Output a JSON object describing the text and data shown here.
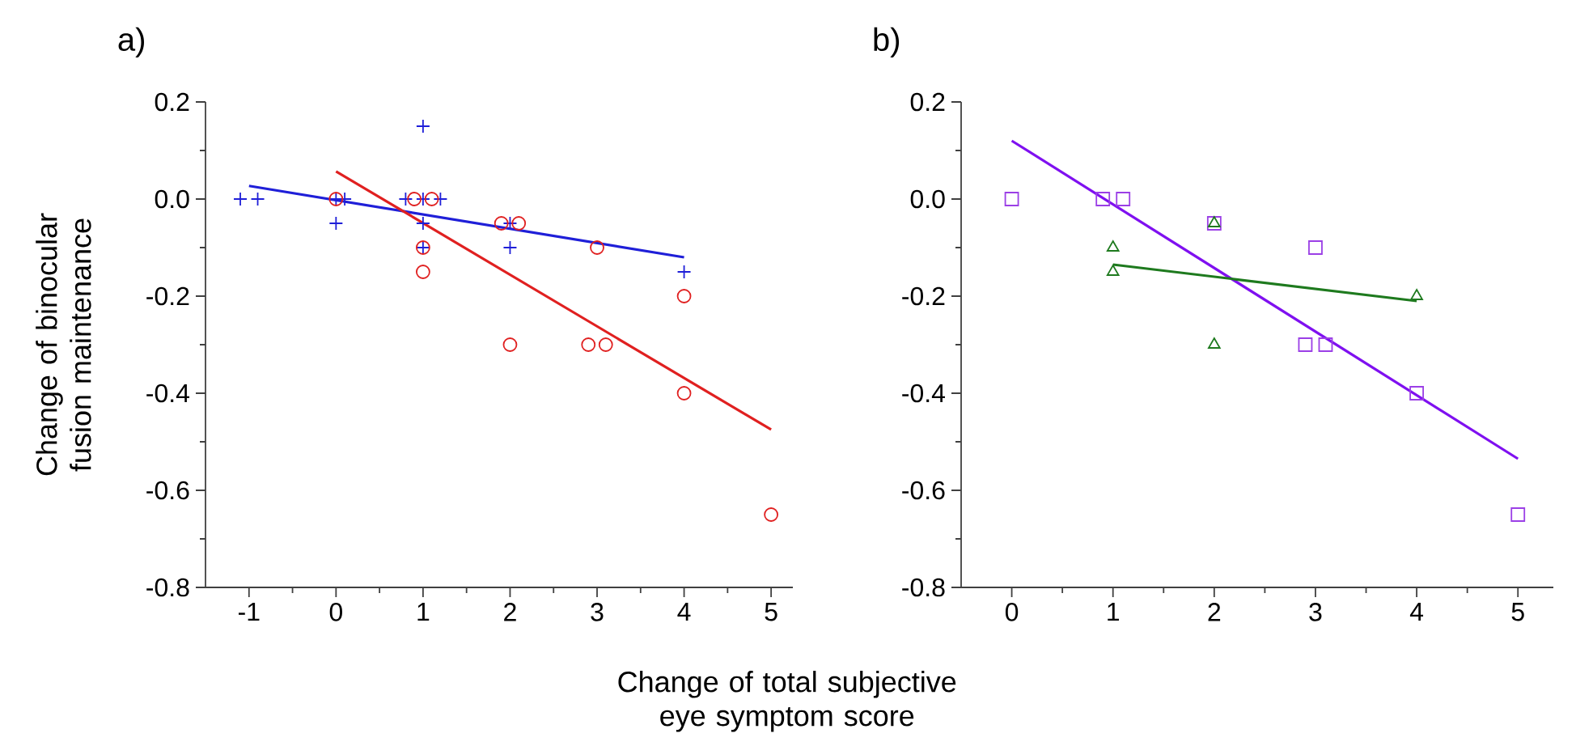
{
  "chart_data": [
    {
      "type": "scatter",
      "title": "a)",
      "xlabel": "Change of total subjective eye symptom score",
      "ylabel": "Change of binocular fusion maintenance",
      "xlim": [
        -1.5,
        5.25
      ],
      "xticks": [
        -1,
        0,
        1,
        2,
        3,
        4,
        5
      ],
      "ylim": [
        -0.8,
        0.2
      ],
      "yticks": [
        {
          "value": -0.8,
          "label": "-0.8"
        },
        {
          "value": -0.6,
          "label": "-0.6"
        },
        {
          "value": -0.4,
          "label": "-0.4"
        },
        {
          "value": -0.2,
          "label": "-0.2"
        },
        {
          "value": 0,
          "label": "0.0"
        },
        {
          "value": 0.2,
          "label": "0.2"
        }
      ],
      "grid": false,
      "series": [
        {
          "type": "scatter",
          "marker": "cross",
          "color": "#1f1fd8",
          "x": [
            -1.1,
            -0.9,
            0,
            0.1,
            0,
            0.8,
            1,
            1.2,
            1,
            1,
            1,
            2,
            2,
            4
          ],
          "values": [
            0,
            0,
            0,
            0,
            -0.05,
            0,
            0,
            0,
            0.15,
            -0.05,
            -0.1,
            -0.05,
            -0.1,
            -0.15
          ]
        },
        {
          "type": "scatter",
          "marker": "circle",
          "color": "#e02020",
          "x": [
            0,
            0.9,
            1.1,
            1,
            1,
            1.9,
            2.1,
            2,
            3,
            2.9,
            3.1,
            4,
            4,
            5
          ],
          "values": [
            0,
            0,
            0,
            -0.1,
            -0.15,
            -0.05,
            -0.05,
            -0.3,
            -0.1,
            -0.3,
            -0.3,
            -0.2,
            -0.4,
            -0.65
          ]
        },
        {
          "type": "line",
          "marker": "none",
          "color": "#1f1fd8",
          "x": [
            -1,
            4
          ],
          "values": [
            0.027,
            -0.12
          ]
        },
        {
          "type": "line",
          "marker": "none",
          "color": "#e02020",
          "x": [
            0,
            5
          ],
          "values": [
            0.057,
            -0.475
          ]
        }
      ]
    },
    {
      "type": "scatter",
      "title": "b)",
      "xlim": [
        -0.5,
        5.35
      ],
      "xticks": [
        0,
        1,
        2,
        3,
        4,
        5
      ],
      "ylim": [
        -0.8,
        0.2
      ],
      "yticks": [
        {
          "value": -0.8,
          "label": "-0.8"
        },
        {
          "value": -0.6,
          "label": "-0.6"
        },
        {
          "value": -0.4,
          "label": "-0.4"
        },
        {
          "value": -0.2,
          "label": "-0.2"
        },
        {
          "value": 0,
          "label": "0.0"
        },
        {
          "value": 0.2,
          "label": "0.2"
        }
      ],
      "grid": false,
      "series": [
        {
          "type": "scatter",
          "marker": "square",
          "color": "#9b3fe6",
          "x": [
            0,
            0.9,
            1.1,
            2,
            2.9,
            3.1,
            3,
            4,
            5
          ],
          "values": [
            0,
            0,
            0,
            -0.05,
            -0.3,
            -0.3,
            -0.1,
            -0.4,
            -0.65
          ]
        },
        {
          "type": "scatter",
          "marker": "triangle",
          "color": "#1e7a1e",
          "x": [
            1,
            1,
            2,
            2,
            4
          ],
          "values": [
            -0.1,
            -0.15,
            -0.05,
            -0.3,
            -0.2
          ]
        },
        {
          "type": "line",
          "marker": "none",
          "color": "#7f10f0",
          "x": [
            0,
            5
          ],
          "values": [
            0.12,
            -0.535
          ]
        },
        {
          "type": "line",
          "marker": "none",
          "color": "#1e7a1e",
          "x": [
            1,
            4
          ],
          "values": [
            -0.135,
            -0.21
          ]
        }
      ]
    }
  ]
}
